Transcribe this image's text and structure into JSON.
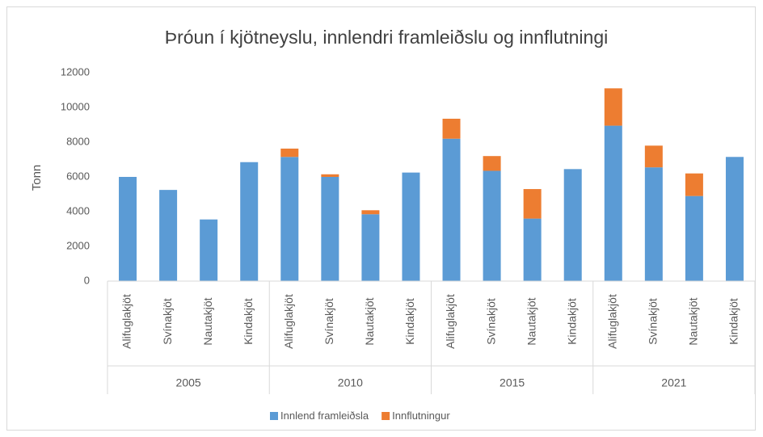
{
  "chart_data": {
    "type": "stacked_bar",
    "title": "Þróun í kjötneyslu, innlendri framleiðslu og innflutningi",
    "y_label": "Tonn",
    "groups": [
      "2005",
      "2010",
      "2015",
      "2021"
    ],
    "categories": [
      "Alifuglakjöt",
      "Svínakjöt",
      "Nautakjöt",
      "Kindakjöt",
      "Alifuglakjöt",
      "Svínakjöt",
      "Nautakjöt",
      "Kindakjöt",
      "Alifuglakjöt",
      "Svínakjöt",
      "Nautakjöt",
      "Kindakjöt",
      "Alifuglakjöt",
      "Svínakjöt",
      "Nautakjöt",
      "Kindakjöt"
    ],
    "series": [
      {
        "name": "Innlend framleiðsla",
        "color": "#5b9bd5",
        "values": [
          6000,
          5250,
          3550,
          6850,
          7150,
          6000,
          3850,
          6250,
          8200,
          6350,
          3600,
          6450,
          8950,
          6550,
          4900,
          7150
        ]
      },
      {
        "name": "Innflutningur",
        "color": "#ed7d31",
        "values": [
          0,
          0,
          0,
          0,
          480,
          150,
          230,
          0,
          1150,
          850,
          1700,
          0,
          2150,
          1250,
          1300,
          0
        ]
      }
    ],
    "ylim": [
      0,
      12000
    ],
    "yticks": [
      0,
      2000,
      4000,
      6000,
      8000,
      10000,
      12000
    ],
    "grid": false,
    "legend": "bottom"
  }
}
